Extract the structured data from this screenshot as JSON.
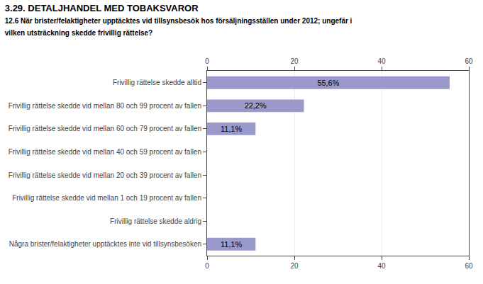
{
  "chart_data": {
    "type": "bar",
    "title": "3.29. DETALJHANDEL MED TOBAKSVAROR",
    "subtitle": "12.6 När brister/felaktigheter upptäcktes vid tillsynsbesök hos försäljningsställen under 2012; ungefär i\nvilken utsträckning skedde frivillig rättelse?",
    "orientation": "horizontal",
    "categories": [
      "Frivillig rättelse skedde alltid",
      "Frivillig rättelse skedde vid mellan 80 och 99 procent av fallen",
      "Frivillig rättelse skedde vid mellan 60 och 79 procent av fallen",
      "Frivillig rättelse skedde vid mellan 40 och 59 procent av fallen",
      "Frivillig rättelse skedde vid mellan 20 och 39 procent av fallen",
      "Frivillig rättelse skedde vid mellan 1 och 19 procent av fallen",
      "Frivillig rättelse skedde aldrig",
      "Några brister/felaktigheter upptäcktes inte vid tillsynsbesöken"
    ],
    "values": [
      55.6,
      22.2,
      11.1,
      0,
      0,
      0,
      0,
      11.1
    ],
    "value_labels": [
      "55,6%",
      "22,2%",
      "11,1%",
      null,
      null,
      null,
      null,
      "11,1%"
    ],
    "data_labels": true,
    "color": "#9999cc",
    "xlim": [
      0,
      60
    ],
    "xticks": [
      0,
      20,
      40,
      60
    ],
    "grid": true
  }
}
